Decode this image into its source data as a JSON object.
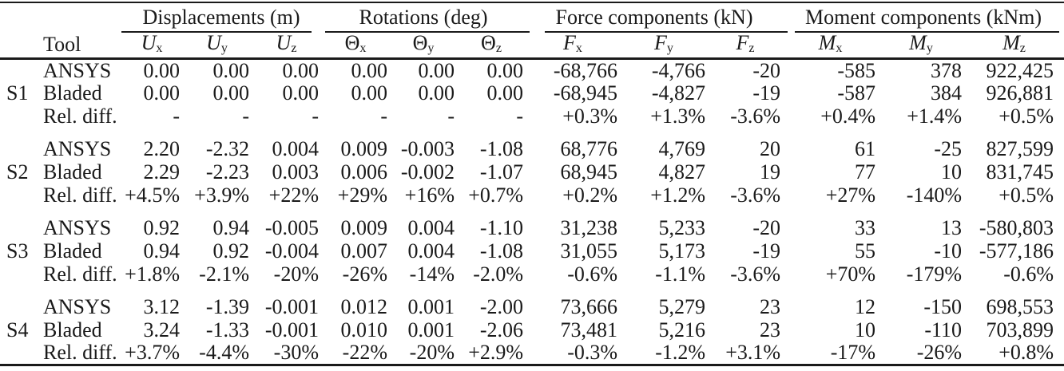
{
  "table": {
    "tool_header": "Tool",
    "column_groups": [
      {
        "label": "Displacements (m)",
        "columns": [
          {
            "symbol": "U",
            "sub": "x",
            "italic": true
          },
          {
            "symbol": "U",
            "sub": "y",
            "italic": true
          },
          {
            "symbol": "U",
            "sub": "z",
            "italic": true
          }
        ]
      },
      {
        "label": "Rotations (deg)",
        "columns": [
          {
            "symbol": "Θ",
            "sub": "x",
            "italic": false
          },
          {
            "symbol": "Θ",
            "sub": "y",
            "italic": false
          },
          {
            "symbol": "Θ",
            "sub": "z",
            "italic": false
          }
        ]
      },
      {
        "label": "Force components (kN)",
        "columns": [
          {
            "symbol": "F",
            "sub": "x",
            "italic": true
          },
          {
            "symbol": "F",
            "sub": "y",
            "italic": true
          },
          {
            "symbol": "F",
            "sub": "z",
            "italic": true
          }
        ]
      },
      {
        "label": "Moment components (kNm)",
        "columns": [
          {
            "symbol": "M",
            "sub": "x",
            "italic": true
          },
          {
            "symbol": "M",
            "sub": "y",
            "italic": true
          },
          {
            "symbol": "M",
            "sub": "z",
            "italic": true
          }
        ]
      }
    ],
    "sections": [
      {
        "id": "S1",
        "rows": [
          {
            "tool": "ANSYS",
            "values": [
              "0.00",
              "0.00",
              "0.00",
              "0.00",
              "0.00",
              "0.00",
              "-68,766",
              "-4,766",
              "-20",
              "-585",
              "378",
              "922,425"
            ]
          },
          {
            "tool": "Bladed",
            "values": [
              "0.00",
              "0.00",
              "0.00",
              "0.00",
              "0.00",
              "0.00",
              "-68,945",
              "-4,827",
              "-19",
              "-587",
              "384",
              "926,881"
            ]
          },
          {
            "tool": "Rel. diff.",
            "values": [
              "-",
              "-",
              "-",
              "-",
              "-",
              "-",
              "+0.3%",
              "+1.3%",
              "-3.6%",
              "+0.4%",
              "+1.4%",
              "+0.5%"
            ]
          }
        ]
      },
      {
        "id": "S2",
        "rows": [
          {
            "tool": "ANSYS",
            "values": [
              "2.20",
              "-2.32",
              "0.004",
              "0.009",
              "-0.003",
              "-1.08",
              "68,776",
              "4,769",
              "20",
              "61",
              "-25",
              "827,599"
            ]
          },
          {
            "tool": "Bladed",
            "values": [
              "2.29",
              "-2.23",
              "0.003",
              "0.006",
              "-0.002",
              "-1.07",
              "68,945",
              "4,827",
              "19",
              "77",
              "10",
              "831,745"
            ]
          },
          {
            "tool": "Rel. diff.",
            "values": [
              "+4.5%",
              "+3.9%",
              "+22%",
              "+29%",
              "+16%",
              "+0.7%",
              "+0.2%",
              "+1.2%",
              "-3.6%",
              "+27%",
              "-140%",
              "+0.5%"
            ]
          }
        ]
      },
      {
        "id": "S3",
        "rows": [
          {
            "tool": "ANSYS",
            "values": [
              "0.92",
              "0.94",
              "-0.005",
              "0.009",
              "0.004",
              "-1.10",
              "31,238",
              "5,233",
              "-20",
              "33",
              "13",
              "-580,803"
            ]
          },
          {
            "tool": "Bladed",
            "values": [
              "0.94",
              "0.92",
              "-0.004",
              "0.007",
              "0.004",
              "-1.08",
              "31,055",
              "5,173",
              "-19",
              "55",
              "-10",
              "-577,186"
            ]
          },
          {
            "tool": "Rel. diff.",
            "values": [
              "+1.8%",
              "-2.1%",
              "-20%",
              "-26%",
              "-14%",
              "-2.0%",
              "-0.6%",
              "-1.1%",
              "-3.6%",
              "+70%",
              "-179%",
              "-0.6%"
            ]
          }
        ]
      },
      {
        "id": "S4",
        "rows": [
          {
            "tool": "ANSYS",
            "values": [
              "3.12",
              "-1.39",
              "-0.001",
              "0.012",
              "0.001",
              "-2.00",
              "73,666",
              "5,279",
              "23",
              "12",
              "-150",
              "698,553"
            ]
          },
          {
            "tool": "Bladed",
            "values": [
              "3.24",
              "-1.33",
              "-0.001",
              "0.010",
              "0.001",
              "-2.06",
              "73,481",
              "5,216",
              "23",
              "10",
              "-110",
              "703,899"
            ]
          },
          {
            "tool": "Rel. diff.",
            "values": [
              "+3.7%",
              "-4.4%",
              "-30%",
              "-22%",
              "-20%",
              "+2.9%",
              "-0.3%",
              "-1.2%",
              "+3.1%",
              "-17%",
              "-26%",
              "+0.8%"
            ]
          }
        ]
      }
    ],
    "colors": {
      "text": "#1a1a1a",
      "rule": "#1a1a1a",
      "background": "#ffffff"
    }
  }
}
